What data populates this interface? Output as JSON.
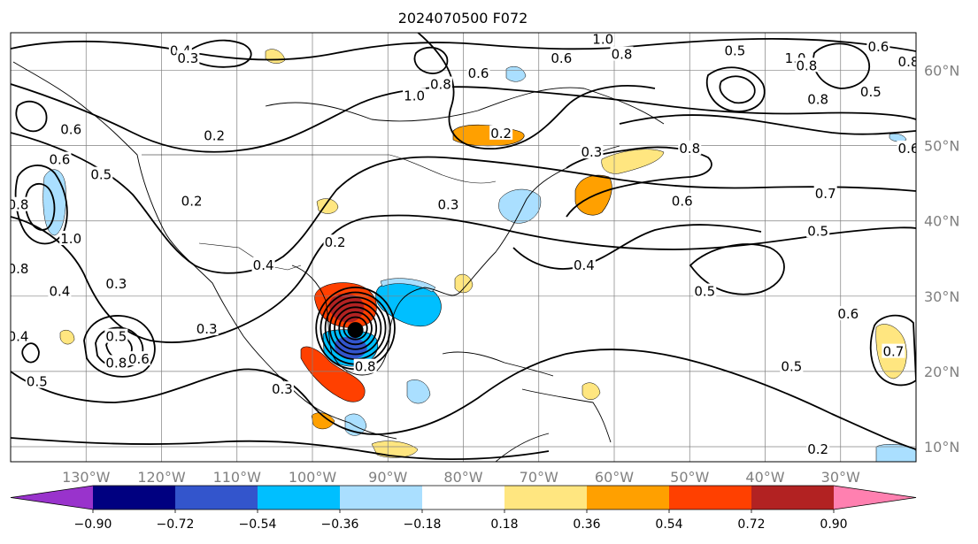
{
  "title": "2024070500 F072",
  "map": {
    "lon_range": [
      -140,
      -20
    ],
    "lat_range": [
      8,
      65
    ],
    "lon_ticks": [
      {
        "value": -130,
        "label": "130°W"
      },
      {
        "value": -120,
        "label": "120°W"
      },
      {
        "value": -110,
        "label": "110°W"
      },
      {
        "value": -100,
        "label": "100°W"
      },
      {
        "value": -90,
        "label": "90°W"
      },
      {
        "value": -80,
        "label": "80°W"
      },
      {
        "value": -70,
        "label": "70°W"
      },
      {
        "value": -60,
        "label": "60°W"
      },
      {
        "value": -50,
        "label": "50°W"
      },
      {
        "value": -40,
        "label": "40°W"
      },
      {
        "value": -30,
        "label": "30°W"
      }
    ],
    "lat_ticks": [
      {
        "value": 10,
        "label": "10°N"
      },
      {
        "value": 20,
        "label": "20°N"
      },
      {
        "value": 30,
        "label": "30°N"
      },
      {
        "value": 40,
        "label": "40°N"
      },
      {
        "value": 50,
        "label": "50°N"
      },
      {
        "value": 60,
        "label": "60°N"
      }
    ],
    "grid": true,
    "storm_center": {
      "lon": -94.3,
      "lat": 25.5
    },
    "contour_labels": [
      {
        "text": "0.4",
        "lon": -117.5,
        "lat": 62.5
      },
      {
        "text": "0.3",
        "lon": -116.5,
        "lat": 61.5
      },
      {
        "text": "0.2",
        "lon": -113,
        "lat": 51.2
      },
      {
        "text": "0.2",
        "lon": -116,
        "lat": 42.5
      },
      {
        "text": "0.6",
        "lon": -132,
        "lat": 52
      },
      {
        "text": "0.6",
        "lon": -133.5,
        "lat": 48
      },
      {
        "text": "0.5",
        "lon": -128,
        "lat": 46
      },
      {
        "text": "0.8",
        "lon": -139,
        "lat": 42
      },
      {
        "text": "0.8",
        "lon": -139,
        "lat": 33.5
      },
      {
        "text": "1.0",
        "lon": -132,
        "lat": 37.5
      },
      {
        "text": "0.4",
        "lon": -133.5,
        "lat": 30.5
      },
      {
        "text": "0.3",
        "lon": -126,
        "lat": 31.5
      },
      {
        "text": "0.4",
        "lon": -139,
        "lat": 24.5
      },
      {
        "text": "0.5",
        "lon": -136.5,
        "lat": 18.5
      },
      {
        "text": "0.5",
        "lon": -126,
        "lat": 24.5
      },
      {
        "text": "0.8",
        "lon": -126,
        "lat": 21
      },
      {
        "text": "0.6",
        "lon": -123,
        "lat": 21.5
      },
      {
        "text": "0.3",
        "lon": -114,
        "lat": 25.5
      },
      {
        "text": "0.4",
        "lon": -106.5,
        "lat": 34
      },
      {
        "text": "0.2",
        "lon": -97,
        "lat": 37
      },
      {
        "text": "0.3",
        "lon": -104,
        "lat": 17.5
      },
      {
        "text": "0.3",
        "lon": -82,
        "lat": 42
      },
      {
        "text": "1.0",
        "lon": -86.5,
        "lat": 56.5
      },
      {
        "text": "0.8",
        "lon": -83,
        "lat": 58
      },
      {
        "text": "0.6",
        "lon": -78,
        "lat": 59.5
      },
      {
        "text": "0.2",
        "lon": -75,
        "lat": 51.5
      },
      {
        "text": "0.6",
        "lon": -67,
        "lat": 61.5
      },
      {
        "text": "1.0",
        "lon": -61.5,
        "lat": 64
      },
      {
        "text": "0.8",
        "lon": -59,
        "lat": 62
      },
      {
        "text": "0.3",
        "lon": -63,
        "lat": 49
      },
      {
        "text": "0.8",
        "lon": -50,
        "lat": 49.5
      },
      {
        "text": "0.6",
        "lon": -51,
        "lat": 42.5
      },
      {
        "text": "0.4",
        "lon": -64,
        "lat": 34
      },
      {
        "text": "0.5",
        "lon": -44,
        "lat": 62.5
      },
      {
        "text": "1.0",
        "lon": -36,
        "lat": 61.5
      },
      {
        "text": "0.8",
        "lon": -34.5,
        "lat": 60.5
      },
      {
        "text": "0.8",
        "lon": -33,
        "lat": 56
      },
      {
        "text": "0.6",
        "lon": -25,
        "lat": 63
      },
      {
        "text": "0.5",
        "lon": -26,
        "lat": 57
      },
      {
        "text": "0.8",
        "lon": -21,
        "lat": 61
      },
      {
        "text": "0.6",
        "lon": -21,
        "lat": 49.5
      },
      {
        "text": "0.7",
        "lon": -32,
        "lat": 43.5
      },
      {
        "text": "0.5",
        "lon": -33,
        "lat": 38.5
      },
      {
        "text": "0.5",
        "lon": -48,
        "lat": 30.5
      },
      {
        "text": "0.6",
        "lon": -29,
        "lat": 27.5
      },
      {
        "text": "0.5",
        "lon": -36.5,
        "lat": 20.5
      },
      {
        "text": "0.7",
        "lon": -23,
        "lat": 22.5
      },
      {
        "text": "0.2",
        "lon": -33,
        "lat": 9.5
      },
      {
        "text": "0.8",
        "lon": -93,
        "lat": 20.5
      }
    ]
  },
  "colorbar": {
    "boundaries": [
      -0.9,
      -0.72,
      -0.54,
      -0.36,
      -0.18,
      0.18,
      0.36,
      0.54,
      0.72,
      0.9
    ],
    "tick_labels": [
      "−0.90",
      "−0.72",
      "−0.54",
      "−0.36",
      "−0.18",
      "0.18",
      "0.36",
      "0.54",
      "0.72",
      "0.90"
    ],
    "colors": [
      "#9933cc",
      "#000080",
      "#3355cc",
      "#00bfff",
      "#aadfff",
      "#ffffff",
      "#ffe680",
      "#ffa000",
      "#ff4000",
      "#b22222",
      "#ff80b0"
    ],
    "extend": "both"
  }
}
